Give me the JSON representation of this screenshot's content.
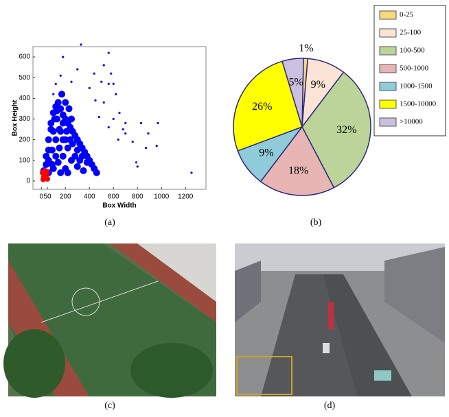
{
  "chart_data": [
    {
      "type": "scatter",
      "x_label": "Box Width",
      "y_label": "Box Height",
      "xlim": [
        -70,
        1370
      ],
      "ylim": [
        -40,
        650
      ],
      "xticks": [
        0,
        50,
        200,
        400,
        600,
        800,
        1000,
        1200
      ],
      "yticks": [
        0,
        100,
        200,
        300,
        400,
        500,
        600
      ],
      "series": [
        {
          "color": "#0000ff",
          "x": [
            330,
            560,
            180,
            520,
            580,
            600,
            620,
            560,
            650,
            700,
            830,
            890,
            970,
            960,
            870,
            800,
            790,
            700,
            760,
            640,
            1250,
            500,
            440,
            400,
            250,
            300,
            160,
            120,
            100,
            450,
            520,
            600,
            680,
            560,
            480,
            20,
            40,
            60,
            80,
            100,
            120,
            140,
            160,
            180,
            200,
            220,
            240,
            260,
            280,
            300,
            320,
            340,
            360,
            380,
            400,
            420,
            440,
            460,
            30,
            60,
            90,
            120,
            150,
            180,
            210,
            60,
            90,
            120,
            150,
            180,
            100,
            140,
            180,
            220,
            260,
            300,
            340,
            380,
            200,
            250,
            300,
            350,
            80,
            110,
            130,
            200,
            240,
            160,
            100,
            60,
            40,
            220,
            160,
            280,
            320,
            250,
            200,
            230,
            170,
            130
          ],
          "y": [
            660,
            620,
            600,
            560,
            520,
            470,
            420,
            470,
            330,
            280,
            280,
            230,
            280,
            170,
            160,
            70,
            90,
            230,
            190,
            200,
            40,
            480,
            520,
            450,
            480,
            540,
            510,
            470,
            420,
            390,
            380,
            300,
            250,
            260,
            310,
            50,
            120,
            200,
            280,
            330,
            360,
            380,
            350,
            320,
            300,
            280,
            260,
            240,
            220,
            200,
            180,
            160,
            140,
            120,
            100,
            80,
            60,
            40,
            20,
            40,
            80,
            120,
            160,
            200,
            240,
            100,
            150,
            200,
            250,
            280,
            60,
            90,
            120,
            160,
            180,
            150,
            120,
            90,
            60,
            100,
            70,
            50,
            250,
            300,
            340,
            200,
            200,
            240,
            240,
            150,
            80,
            40,
            40,
            120,
            100,
            300,
            380,
            350,
            420,
            300
          ]
        },
        {
          "color": "#ff0000",
          "x": [
            20,
            40,
            30,
            50,
            10,
            45,
            15
          ],
          "y": [
            20,
            30,
            50,
            10,
            40,
            45,
            8
          ]
        }
      ]
    },
    {
      "type": "pie",
      "categories": [
        "0-25",
        "25-100",
        "100-500",
        "500-1000",
        "1000-1500",
        "1500-10000",
        ">10000"
      ],
      "values": [
        1,
        9,
        32,
        18,
        9,
        26,
        5
      ],
      "value_labels": [
        "1%",
        "9%",
        "32%",
        "18%",
        "9%",
        "26%",
        "5%"
      ],
      "colors": [
        "#f7d97c",
        "#fbe4d6",
        "#bcd39a",
        "#e6b5b4",
        "#8fcbd9",
        "#ffff00",
        "#cbbfe2"
      ]
    }
  ],
  "captions": [
    "(a)",
    "(b)",
    "(c)",
    "(d)"
  ]
}
